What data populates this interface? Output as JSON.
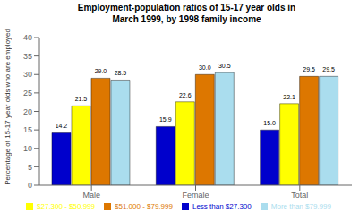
{
  "chart_data": {
    "type": "bar",
    "title": "Employment-population ratios of 15-17 year olds in\nMarch 1999, by 1998 family income",
    "ylabel": "Percentage of 15-17 year olds who are employed",
    "categories": [
      "Male",
      "Female",
      "Total"
    ],
    "series": [
      {
        "name": "Less than $27,300",
        "color": "#0000CC",
        "values": [
          14.2,
          15.9,
          15.0
        ],
        "value_labels": [
          "14.2",
          "15.9",
          "15.0"
        ]
      },
      {
        "name": "$27,300 - $50,999",
        "color": "#FFFF00",
        "values": [
          21.5,
          22.6,
          22.1
        ],
        "value_labels": [
          "21.5",
          "22.6",
          "22.1"
        ]
      },
      {
        "name": "$51,000 - $79,999",
        "color": "#DD7700",
        "values": [
          29.0,
          30.0,
          29.5
        ],
        "value_labels": [
          "29.0",
          "30.0",
          "29.5"
        ]
      },
      {
        "name": "More than $79,999",
        "color": "#AADDEE",
        "values": [
          28.5,
          30.5,
          29.5
        ],
        "value_labels": [
          "28.5",
          "30.5",
          "29.5"
        ]
      }
    ],
    "ylim": [
      0,
      40
    ],
    "yticks": [
      0,
      5,
      10,
      15,
      20,
      25,
      30,
      35,
      40
    ],
    "grid": false,
    "data_labels": true,
    "legend": "bottom"
  }
}
